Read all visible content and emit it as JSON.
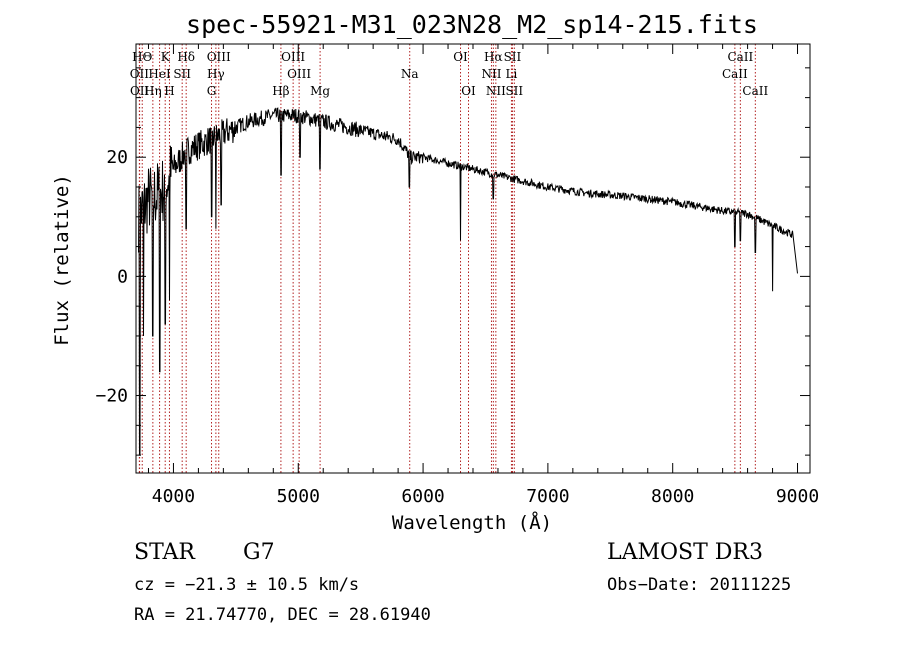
{
  "chart_data": {
    "type": "line",
    "title": "spec-55921-M31_023N28_M2_sp14-215.fits",
    "xlabel": "Wavelength (Å)",
    "ylabel": "Flux (relative)",
    "xlim": [
      3700,
      9100
    ],
    "ylim": [
      -33,
      39
    ],
    "xticks": [
      4000,
      5000,
      6000,
      7000,
      8000,
      9000
    ],
    "xtick_labels": [
      "4000",
      "5000",
      "6000",
      "7000",
      "8000",
      "9000"
    ],
    "yticks": [
      -20,
      0,
      20
    ],
    "ytick_labels": [
      "−20",
      "0",
      "20"
    ],
    "continuum": [
      [
        3720,
        10
      ],
      [
        3800,
        13
      ],
      [
        3900,
        14
      ],
      [
        4000,
        18
      ],
      [
        4100,
        21
      ],
      [
        4200,
        22
      ],
      [
        4300,
        23
      ],
      [
        4400,
        24
      ],
      [
        4600,
        26
      ],
      [
        4800,
        27
      ],
      [
        5000,
        27
      ],
      [
        5200,
        26
      ],
      [
        5400,
        25
      ],
      [
        5600,
        24
      ],
      [
        5800,
        23
      ],
      [
        5900,
        20
      ],
      [
        6000,
        20
      ],
      [
        6200,
        19
      ],
      [
        6400,
        18
      ],
      [
        6600,
        17
      ],
      [
        6800,
        16
      ],
      [
        7000,
        15
      ],
      [
        7300,
        14
      ],
      [
        7600,
        13.5
      ],
      [
        8000,
        12.5
      ],
      [
        8400,
        11
      ],
      [
        8600,
        10.5
      ],
      [
        8800,
        8.5
      ],
      [
        8960,
        7
      ],
      [
        9000,
        0.5
      ]
    ],
    "absorption_features": [
      [
        3730,
        -30
      ],
      [
        3760,
        -10
      ],
      [
        3835,
        -10
      ],
      [
        3890,
        -16
      ],
      [
        3934,
        -8
      ],
      [
        3968,
        -4
      ],
      [
        4101,
        8
      ],
      [
        4305,
        10
      ],
      [
        4340,
        8
      ],
      [
        4383,
        12
      ],
      [
        4861,
        17
      ],
      [
        5015,
        20
      ],
      [
        5175,
        18
      ],
      [
        5890,
        15
      ],
      [
        6300,
        6
      ],
      [
        6563,
        13
      ],
      [
        8498,
        5
      ],
      [
        8542,
        6
      ],
      [
        8662,
        4
      ],
      [
        8800,
        -2.5
      ]
    ],
    "spectral_lines": [
      {
        "name": "HΘ",
        "wavelength": 3750,
        "row": 1
      },
      {
        "name": "OII",
        "wavelength": 3727,
        "row": 2
      },
      {
        "name": "OII",
        "wavelength": 3729,
        "row": 3
      },
      {
        "name": "Hη",
        "wavelength": 3835,
        "row": 3
      },
      {
        "name": "HeI",
        "wavelength": 3889,
        "row": 2
      },
      {
        "name": "K",
        "wavelength": 3934,
        "row": 1
      },
      {
        "name": "H",
        "wavelength": 3968,
        "row": 3
      },
      {
        "name": "SII",
        "wavelength": 4070,
        "row": 2
      },
      {
        "name": "Hδ",
        "wavelength": 4102,
        "row": 1
      },
      {
        "name": "OIII",
        "wavelength": 4363,
        "row": 1
      },
      {
        "name": "Hγ",
        "wavelength": 4340,
        "row": 2
      },
      {
        "name": "G",
        "wavelength": 4305,
        "row": 3
      },
      {
        "name": "Hβ",
        "wavelength": 4861,
        "row": 3
      },
      {
        "name": "OIII",
        "wavelength": 4959,
        "row": 1
      },
      {
        "name": "OIII",
        "wavelength": 5007,
        "row": 2
      },
      {
        "name": "Mg",
        "wavelength": 5175,
        "row": 3
      },
      {
        "name": "Na",
        "wavelength": 5893,
        "row": 2
      },
      {
        "name": "OI",
        "wavelength": 6300,
        "row": 1
      },
      {
        "name": "OI",
        "wavelength": 6364,
        "row": 3
      },
      {
        "name": "Hα",
        "wavelength": 6563,
        "row": 1
      },
      {
        "name": "NII",
        "wavelength": 6548,
        "row": 2
      },
      {
        "name": "NII",
        "wavelength": 6583,
        "row": 3
      },
      {
        "name": "SII",
        "wavelength": 6716,
        "row": 1
      },
      {
        "name": "Li",
        "wavelength": 6708,
        "row": 2
      },
      {
        "name": "SII",
        "wavelength": 6731,
        "row": 3
      },
      {
        "name": "CaII",
        "wavelength": 8542,
        "row": 1
      },
      {
        "name": "CaII",
        "wavelength": 8498,
        "row": 2
      },
      {
        "name": "CaII",
        "wavelength": 8662,
        "row": 3
      }
    ],
    "line_color": "#000000",
    "marker_color": "#b22222"
  },
  "info": {
    "class": "STAR",
    "subclass": "G7",
    "survey": "LAMOST DR3",
    "velocity": "cz = −21.3 ± 10.5 km/s",
    "obs_date": "Obs−Date: 20111225",
    "coords": "RA =  21.74770, DEC =  28.61940"
  }
}
